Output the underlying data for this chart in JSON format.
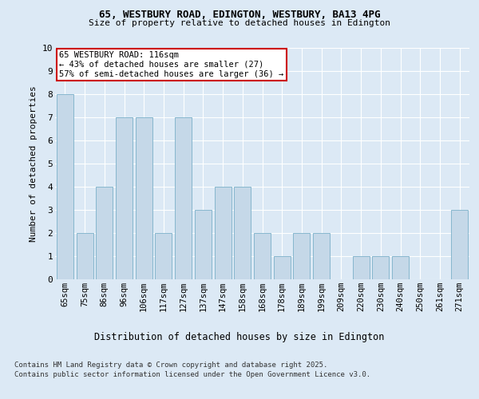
{
  "title1": "65, WESTBURY ROAD, EDINGTON, WESTBURY, BA13 4PG",
  "title2": "Size of property relative to detached houses in Edington",
  "xlabel": "Distribution of detached houses by size in Edington",
  "ylabel": "Number of detached properties",
  "categories": [
    "65sqm",
    "75sqm",
    "86sqm",
    "96sqm",
    "106sqm",
    "117sqm",
    "127sqm",
    "137sqm",
    "147sqm",
    "158sqm",
    "168sqm",
    "178sqm",
    "189sqm",
    "199sqm",
    "209sqm",
    "220sqm",
    "230sqm",
    "240sqm",
    "250sqm",
    "261sqm",
    "271sqm"
  ],
  "values": [
    8,
    2,
    4,
    7,
    7,
    2,
    7,
    3,
    4,
    4,
    2,
    1,
    2,
    2,
    0,
    1,
    1,
    1,
    0,
    0,
    3
  ],
  "bar_color": "#c5d8e8",
  "bar_edge_color": "#7aafc8",
  "annotation_line1": "65 WESTBURY ROAD: 116sqm",
  "annotation_line2": "← 43% of detached houses are smaller (27)",
  "annotation_line3": "57% of semi-detached houses are larger (36) →",
  "annotation_box_color": "#ffffff",
  "annotation_box_edge_color": "#cc0000",
  "ylim": [
    0,
    10
  ],
  "yticks": [
    0,
    1,
    2,
    3,
    4,
    5,
    6,
    7,
    8,
    9,
    10
  ],
  "background_color": "#dce9f5",
  "plot_bg_color": "#dce9f5",
  "grid_color": "#ffffff",
  "footer1": "Contains HM Land Registry data © Crown copyright and database right 2025.",
  "footer2": "Contains public sector information licensed under the Open Government Licence v3.0."
}
